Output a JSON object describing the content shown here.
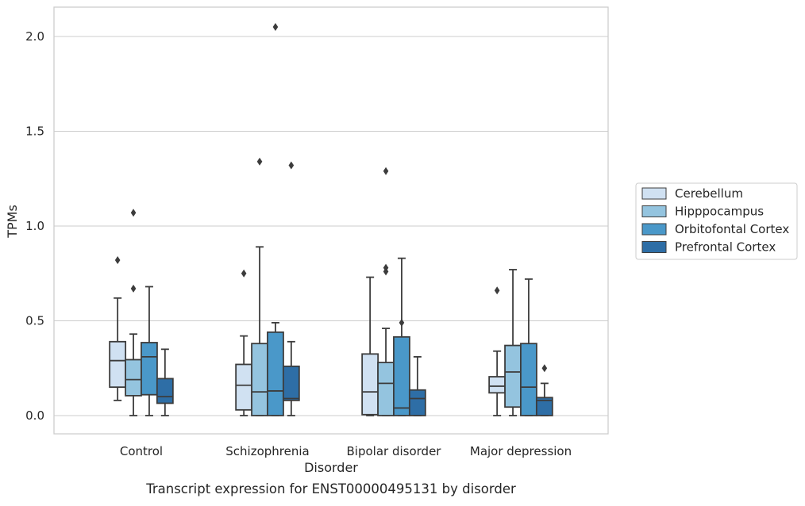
{
  "chart_data": {
    "type": "box",
    "caption": "Transcript expression for ENST00000495131 by disorder",
    "xlabel": "Disorder",
    "ylabel": "TPMs",
    "ylim": [
      -0.1,
      2.15
    ],
    "yticks": [
      "0.0",
      "0.5",
      "1.0",
      "1.5",
      "2.0"
    ],
    "grid": "horizontal",
    "legend_position": "right",
    "categories": [
      "Control",
      "Schizophrenia",
      "Bipolar disorder",
      "Major depression"
    ],
    "series": [
      {
        "name": "Cerebellum",
        "color": "#d0e1f2",
        "boxes": [
          {
            "whisker_low": 0.08,
            "q1": 0.15,
            "median": 0.29,
            "q3": 0.39,
            "whisker_high": 0.62,
            "outliers": [
              0.82
            ]
          },
          {
            "whisker_low": 0.0,
            "q1": 0.03,
            "median": 0.16,
            "q3": 0.27,
            "whisker_high": 0.42,
            "outliers": [
              0.75
            ]
          },
          {
            "whisker_low": 0.0,
            "q1": 0.005,
            "median": 0.125,
            "q3": 0.325,
            "whisker_high": 0.73,
            "outliers": []
          },
          {
            "whisker_low": 0.0,
            "q1": 0.12,
            "median": 0.155,
            "q3": 0.205,
            "whisker_high": 0.34,
            "outliers": [
              0.66
            ]
          }
        ]
      },
      {
        "name": "Hipppocampus",
        "color": "#94c4df",
        "boxes": [
          {
            "whisker_low": 0.0,
            "q1": 0.105,
            "median": 0.19,
            "q3": 0.295,
            "whisker_high": 0.43,
            "outliers": [
              0.67,
              1.07
            ]
          },
          {
            "whisker_low": 0.0,
            "q1": 0.0,
            "median": 0.125,
            "q3": 0.38,
            "whisker_high": 0.89,
            "outliers": [
              1.34
            ]
          },
          {
            "whisker_low": 0.0,
            "q1": 0.0,
            "median": 0.17,
            "q3": 0.28,
            "whisker_high": 0.46,
            "outliers": [
              0.76,
              0.78,
              1.29
            ]
          },
          {
            "whisker_low": 0.0,
            "q1": 0.045,
            "median": 0.23,
            "q3": 0.37,
            "whisker_high": 0.77,
            "outliers": []
          }
        ]
      },
      {
        "name": "Orbitofontal Cortex",
        "color": "#4a98c9",
        "boxes": [
          {
            "whisker_low": 0.0,
            "q1": 0.11,
            "median": 0.31,
            "q3": 0.385,
            "whisker_high": 0.68,
            "outliers": []
          },
          {
            "whisker_low": 0.0,
            "q1": 0.0,
            "median": 0.13,
            "q3": 0.44,
            "whisker_high": 0.49,
            "outliers": [
              2.05
            ]
          },
          {
            "whisker_low": 0.0,
            "q1": 0.0,
            "median": 0.04,
            "q3": 0.415,
            "whisker_high": 0.83,
            "outliers": [
              0.49
            ]
          },
          {
            "whisker_low": 0.0,
            "q1": 0.0,
            "median": 0.15,
            "q3": 0.38,
            "whisker_high": 0.72,
            "outliers": []
          }
        ]
      },
      {
        "name": "Prefrontal Cortex",
        "color": "#2e6ea6",
        "boxes": [
          {
            "whisker_low": 0.0,
            "q1": 0.065,
            "median": 0.1,
            "q3": 0.195,
            "whisker_high": 0.35,
            "outliers": []
          },
          {
            "whisker_low": 0.0,
            "q1": 0.08,
            "median": 0.09,
            "q3": 0.26,
            "whisker_high": 0.39,
            "outliers": [
              1.32
            ]
          },
          {
            "whisker_low": 0.0,
            "q1": 0.0,
            "median": 0.09,
            "q3": 0.135,
            "whisker_high": 0.31,
            "outliers": []
          },
          {
            "whisker_low": 0.0,
            "q1": 0.0,
            "median": 0.08,
            "q3": 0.095,
            "whisker_high": 0.17,
            "outliers": [
              0.25
            ]
          }
        ]
      }
    ]
  }
}
